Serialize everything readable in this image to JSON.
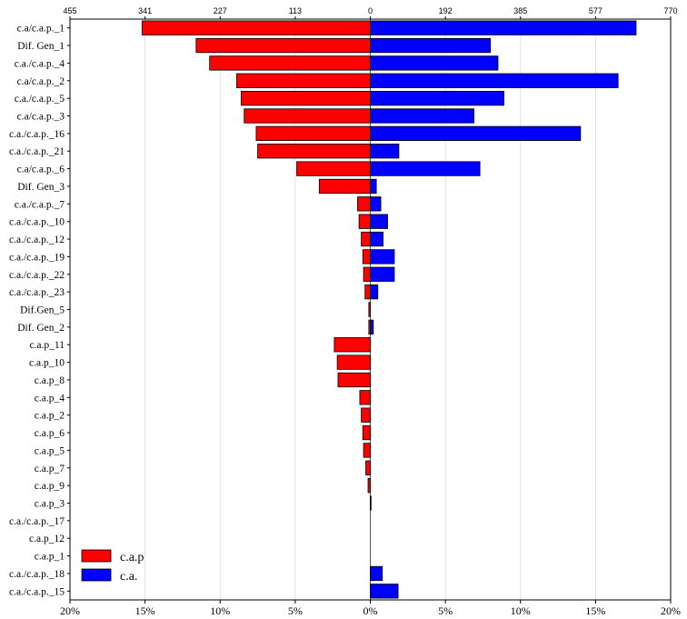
{
  "chart_data": {
    "type": "bar",
    "orientation": "horizontal-diverging",
    "title": "",
    "xlabel": "",
    "ylabel": "",
    "xlim_percent": [
      -20,
      20
    ],
    "bottom_ticks": [
      "20%",
      "15%",
      "10%",
      "5%",
      "0%",
      "5%",
      "10%",
      "15%",
      "20%"
    ],
    "top_ticks": [
      "455",
      "341",
      "227",
      "113",
      "0",
      "192",
      "385",
      "577",
      "770"
    ],
    "grid": "vertical",
    "legend_position": "bottom-left",
    "categories": [
      "c.a/c.a.p._1",
      "Dif. Gen_1",
      "c.a./c.a.p._4",
      "c.a/c.a.p._2",
      "c.a./c.a.p._5",
      "c.a/c.a.p._3",
      "c.a./c.a.p._16",
      "c.a./c.a.p._21",
      "c.a/c.a.p._6",
      "Dif. Gen_3",
      "c.a./c.a.p._7",
      "c.a./c.a.p._10",
      "c.a./c.a.p._12",
      "c.a./c.a.p._19",
      "c.a./c.a.p._22",
      "c.a./c.a.p._23",
      "Dif.Gen_5",
      "Dif. Gen_2",
      "c.a.p_11",
      "c.a.p_10",
      "c.a.p_8",
      "c.a.p_4",
      "c.a.p_2",
      "c.a.p_6",
      "c.a.p_5",
      "c.a.p_7",
      "c.a.p_9",
      "c.a.p_3",
      "c.a./c.a.p._17",
      "c.a.p_12",
      "c.a.p_1",
      "c.a./c.a.p._18",
      "c.a./c.a.p._15"
    ],
    "series": [
      {
        "name": "c.a.p",
        "color": "#ff0000",
        "side": "left",
        "values_percent": [
          15.2,
          11.6,
          10.7,
          8.9,
          8.6,
          8.4,
          7.6,
          7.5,
          4.9,
          3.4,
          0.85,
          0.75,
          0.6,
          0.5,
          0.45,
          0.35,
          0.1,
          0.1,
          2.4,
          2.2,
          2.15,
          0.7,
          0.6,
          0.5,
          0.45,
          0.3,
          0.15,
          0,
          0,
          0,
          0,
          0,
          0
        ]
      },
      {
        "name": "c.a.",
        "color": "#0000ff",
        "side": "right",
        "values_percent": [
          17.7,
          8.0,
          8.5,
          16.5,
          8.9,
          6.9,
          14.0,
          1.9,
          7.3,
          0.4,
          0.7,
          1.15,
          0.85,
          1.6,
          1.6,
          0.5,
          0,
          0.2,
          0,
          0,
          0,
          0,
          0,
          0,
          0,
          0,
          0,
          0.05,
          0,
          0,
          0,
          0.8,
          1.85
        ]
      }
    ]
  }
}
